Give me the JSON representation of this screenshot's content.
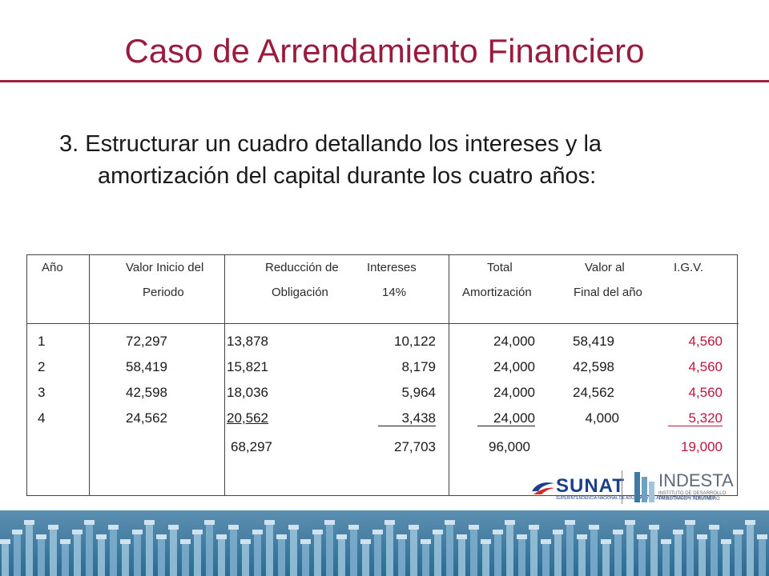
{
  "slide": {
    "title": "Caso de Arrendamiento Financiero",
    "point_line1": "3. Estructurar un cuadro detallando los intereses y la",
    "point_line2": "amortización del capital durante los cuatro años:"
  },
  "table": {
    "headers": [
      {
        "line1": "Año",
        "line2": ""
      },
      {
        "line1": "Valor Inicio del",
        "line2": "Periodo"
      },
      {
        "line1": "Reducción de",
        "line2": "Obligación"
      },
      {
        "line1": "Intereses",
        "line2": "14%"
      },
      {
        "line1": "Total",
        "line2": "Amortización"
      },
      {
        "line1": "Valor al",
        "line2": "Final del año"
      },
      {
        "line1": "I.G.V.",
        "line2": ""
      }
    ],
    "rows": [
      [
        "1",
        "72,297",
        "13,878",
        "10,122",
        "24,000",
        "58,419",
        "4,560"
      ],
      [
        "2",
        "58,419",
        "15,821",
        "8,179",
        "24,000",
        "42,598",
        "4,560"
      ],
      [
        "3",
        "42,598",
        "18,036",
        "5,964",
        "24,000",
        "24,562",
        "4,560"
      ],
      [
        "4",
        "24,562",
        "20,562",
        "3,438",
        "24,000",
        "4,000",
        "5,320"
      ]
    ],
    "totals": [
      "",
      "",
      "68,297",
      "27,703",
      "96,000",
      "",
      "19,000"
    ]
  },
  "logos": {
    "sunat": "SUNAT",
    "sunat_sub": "SUPERINTENDENCIA NACIONAL DE ADUANAS Y DE ADMINISTRACIÓN TRIBUTARIA",
    "indesta": "INDESTA",
    "indesta_sub1": "INSTITUTO DE DESARROLLO",
    "indesta_sub2": "TRIBUTARIO Y ADUANERO"
  },
  "colors": {
    "title": "#9b1b3f",
    "igv_column": "#c0143c",
    "band": "#3b78a0"
  }
}
